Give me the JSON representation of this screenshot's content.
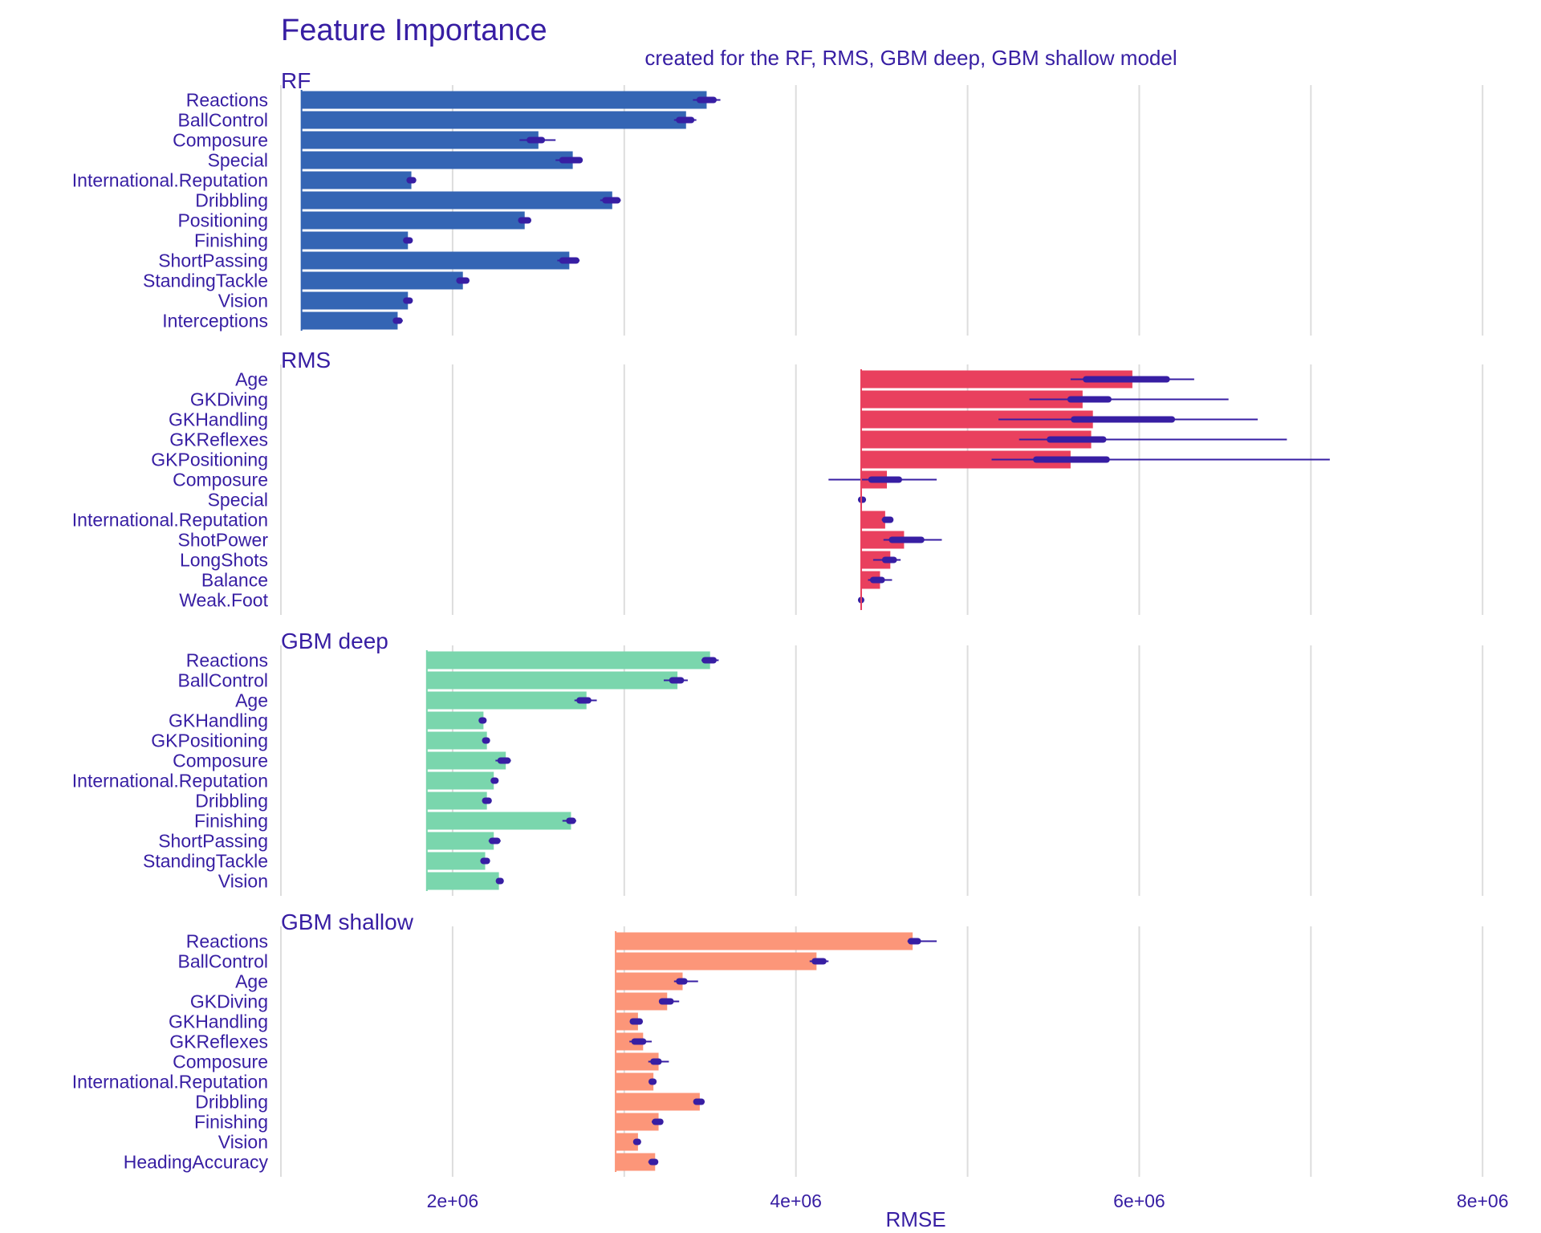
{
  "chart_data": {
    "type": "bar",
    "title": "Feature Importance",
    "subtitle": "created for the RF, RMS, GBM deep, GBM shallow model",
    "xlabel": "RMSE",
    "ylabel": "",
    "xlim": [
      1000000,
      8200000
    ],
    "x_ticks": [
      2000000,
      4000000,
      6000000,
      8000000
    ],
    "x_tick_labels": [
      "2e+06",
      "4e+06",
      "6e+06",
      "8e+06"
    ],
    "grid": true,
    "legend": "none",
    "colors": {
      "text": "#371ea3",
      "whisker": "#371ea3",
      "grid": "#dddddd",
      "RF": "#3465b4",
      "RMS": "#e9405e",
      "GBM deep": "#7ad6ad",
      "GBM shallow": "#fc9679"
    },
    "panels": [
      {
        "name": "RF",
        "baseline": 1120000,
        "features": [
          "Reactions",
          "BallControl",
          "Composure",
          "Special",
          "International.Reputation",
          "Dribbling",
          "Positioning",
          "Finishing",
          "ShortPassing",
          "StandingTackle",
          "Vision",
          "Interceptions"
        ],
        "values": [
          3480000,
          3360000,
          2500000,
          2700000,
          1760000,
          2930000,
          2420000,
          1740000,
          2680000,
          2060000,
          1740000,
          1680000
        ],
        "box_low": [
          3440000,
          3320000,
          2450000,
          2640000,
          1750000,
          2890000,
          2400000,
          1730000,
          2640000,
          2040000,
          1730000,
          1670000
        ],
        "box_high": [
          3520000,
          3390000,
          2520000,
          2740000,
          1770000,
          2960000,
          2440000,
          1750000,
          2720000,
          2080000,
          1750000,
          1690000
        ],
        "whisk_low": [
          3400000,
          3290000,
          2390000,
          2600000,
          1740000,
          2860000,
          2390000,
          1730000,
          2610000,
          2030000,
          1730000,
          1660000
        ],
        "whisk_high": [
          3560000,
          3420000,
          2600000,
          2750000,
          1780000,
          2980000,
          2450000,
          1750000,
          2740000,
          2090000,
          1750000,
          1710000
        ]
      },
      {
        "name": "RMS",
        "baseline": 4380000,
        "features": [
          "Age",
          "GKDiving",
          "GKHandling",
          "GKReflexes",
          "GKPositioning",
          "Composure",
          "Special",
          "International.Reputation",
          "ShotPower",
          "LongShots",
          "Balance",
          "Weak.Foot"
        ],
        "values": [
          5960000,
          5670000,
          5730000,
          5720000,
          5600000,
          4530000,
          4380000,
          4520000,
          4630000,
          4550000,
          4490000,
          4380000
        ],
        "box_low": [
          5690000,
          5600000,
          5620000,
          5480000,
          5400000,
          4440000,
          4380000,
          4520000,
          4560000,
          4520000,
          4450000,
          4380000
        ],
        "box_high": [
          6160000,
          5820000,
          6190000,
          5790000,
          5810000,
          4600000,
          4390000,
          4550000,
          4730000,
          4570000,
          4500000,
          4380000
        ],
        "whisk_low": [
          5600000,
          5360000,
          5180000,
          5300000,
          5140000,
          4190000,
          4370000,
          4500000,
          4510000,
          4450000,
          4420000,
          4370000
        ],
        "whisk_high": [
          6320000,
          6520000,
          6690000,
          6860000,
          7110000,
          4820000,
          4390000,
          4560000,
          4850000,
          4610000,
          4560000,
          4380000
        ]
      },
      {
        "name": "GBM deep",
        "baseline": 1850000,
        "features": [
          "Reactions",
          "BallControl",
          "Age",
          "GKHandling",
          "GKPositioning",
          "Composure",
          "International.Reputation",
          "Dribbling",
          "Finishing",
          "ShortPassing",
          "StandingTackle",
          "Vision"
        ],
        "values": [
          3500000,
          3310000,
          2780000,
          2180000,
          2200000,
          2310000,
          2240000,
          2200000,
          2690000,
          2240000,
          2190000,
          2270000
        ],
        "box_low": [
          3470000,
          3280000,
          2740000,
          2170000,
          2190000,
          2280000,
          2240000,
          2190000,
          2680000,
          2230000,
          2180000,
          2270000
        ],
        "box_high": [
          3520000,
          3330000,
          2790000,
          2180000,
          2200000,
          2320000,
          2250000,
          2210000,
          2700000,
          2260000,
          2200000,
          2280000
        ],
        "whisk_low": [
          3450000,
          3230000,
          2710000,
          2160000,
          2180000,
          2250000,
          2230000,
          2180000,
          2640000,
          2210000,
          2170000,
          2260000
        ],
        "whisk_high": [
          3550000,
          3370000,
          2840000,
          2190000,
          2210000,
          2340000,
          2260000,
          2220000,
          2720000,
          2280000,
          2210000,
          2280000
        ]
      },
      {
        "name": "GBM shallow",
        "baseline": 2950000,
        "features": [
          "Reactions",
          "BallControl",
          "Age",
          "GKDiving",
          "GKHandling",
          "GKReflexes",
          "Composure",
          "International.Reputation",
          "Dribbling",
          "Finishing",
          "Vision",
          "HeadingAccuracy"
        ],
        "values": [
          4680000,
          4120000,
          3340000,
          3250000,
          3080000,
          3110000,
          3200000,
          3170000,
          3440000,
          3200000,
          3080000,
          3180000
        ],
        "box_low": [
          4670000,
          4110000,
          3320000,
          3220000,
          3050000,
          3060000,
          3170000,
          3160000,
          3420000,
          3180000,
          3070000,
          3160000
        ],
        "box_high": [
          4710000,
          4160000,
          3350000,
          3270000,
          3090000,
          3110000,
          3200000,
          3170000,
          3450000,
          3210000,
          3080000,
          3180000
        ],
        "whisk_low": [
          4650000,
          4080000,
          3290000,
          3210000,
          3050000,
          3030000,
          3140000,
          3150000,
          3420000,
          3160000,
          3060000,
          3140000
        ],
        "whisk_high": [
          4820000,
          4190000,
          3430000,
          3320000,
          3100000,
          3160000,
          3260000,
          3180000,
          3460000,
          3210000,
          3090000,
          3190000
        ]
      }
    ]
  }
}
